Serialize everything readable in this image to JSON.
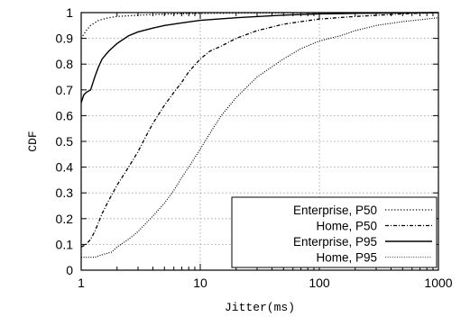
{
  "chart_data": {
    "type": "line",
    "xlabel": "Jitter(ms)",
    "ylabel": "CDF",
    "xscale": "log",
    "xlim": [
      1,
      1000
    ],
    "ylim": [
      0,
      1
    ],
    "grid": true,
    "legend_position": "bottom-right",
    "x_ticks": [
      {
        "value": 1,
        "label": "1"
      },
      {
        "value": 10,
        "label": "10"
      },
      {
        "value": 100,
        "label": "100"
      },
      {
        "value": 1000,
        "label": "1000"
      }
    ],
    "y_ticks": [
      {
        "value": 0,
        "label": "0"
      },
      {
        "value": 0.1,
        "label": "0.1"
      },
      {
        "value": 0.2,
        "label": "0.2"
      },
      {
        "value": 0.3,
        "label": "0.3"
      },
      {
        "value": 0.4,
        "label": "0.4"
      },
      {
        "value": 0.5,
        "label": "0.5"
      },
      {
        "value": 0.6,
        "label": "0.6"
      },
      {
        "value": 0.7,
        "label": "0.7"
      },
      {
        "value": 0.8,
        "label": "0.8"
      },
      {
        "value": 0.9,
        "label": "0.9"
      },
      {
        "value": 1,
        "label": "1"
      }
    ],
    "series": [
      {
        "name": "Enterprise, P50",
        "style": "dotted",
        "x": [
          1,
          1.1,
          1.2,
          1.4,
          1.7,
          2,
          3,
          5,
          10,
          20,
          50,
          100,
          1000
        ],
        "y": [
          0.9,
          0.93,
          0.95,
          0.97,
          0.98,
          0.985,
          0.99,
          0.994,
          0.997,
          0.998,
          0.999,
          1.0,
          1.0
        ]
      },
      {
        "name": "Home, P50",
        "style": "dashdot",
        "x": [
          1,
          1.1,
          1.2,
          1.3,
          1.5,
          1.7,
          2,
          2.5,
          3,
          3.5,
          4,
          5,
          6,
          7,
          8,
          10,
          12,
          15,
          20,
          30,
          50,
          70,
          100,
          200,
          500,
          1000
        ],
        "y": [
          0.09,
          0.1,
          0.12,
          0.15,
          0.22,
          0.27,
          0.33,
          0.4,
          0.46,
          0.52,
          0.57,
          0.64,
          0.69,
          0.73,
          0.77,
          0.82,
          0.85,
          0.87,
          0.9,
          0.93,
          0.955,
          0.965,
          0.975,
          0.985,
          0.995,
          1.0
        ]
      },
      {
        "name": "Enterprise, P95",
        "style": "solid",
        "x": [
          1,
          1.05,
          1.1,
          1.2,
          1.3,
          1.4,
          1.5,
          1.7,
          2,
          2.5,
          3,
          4,
          5,
          7,
          10,
          20,
          50,
          100,
          200,
          1000
        ],
        "y": [
          0.65,
          0.68,
          0.69,
          0.7,
          0.75,
          0.79,
          0.82,
          0.85,
          0.88,
          0.91,
          0.925,
          0.94,
          0.95,
          0.96,
          0.97,
          0.98,
          0.99,
          0.995,
          0.997,
          1.0
        ]
      },
      {
        "name": "Home, P95",
        "style": "dotted-gray",
        "x": [
          1,
          1.3,
          1.5,
          1.8,
          2,
          2.5,
          3,
          4,
          5,
          6,
          7,
          8,
          10,
          12,
          15,
          20,
          30,
          50,
          70,
          100,
          150,
          200,
          300,
          500,
          1000
        ],
        "y": [
          0.05,
          0.05,
          0.06,
          0.07,
          0.09,
          0.12,
          0.15,
          0.21,
          0.26,
          0.31,
          0.36,
          0.4,
          0.47,
          0.53,
          0.6,
          0.67,
          0.75,
          0.82,
          0.86,
          0.89,
          0.91,
          0.93,
          0.95,
          0.965,
          0.98
        ]
      }
    ]
  }
}
